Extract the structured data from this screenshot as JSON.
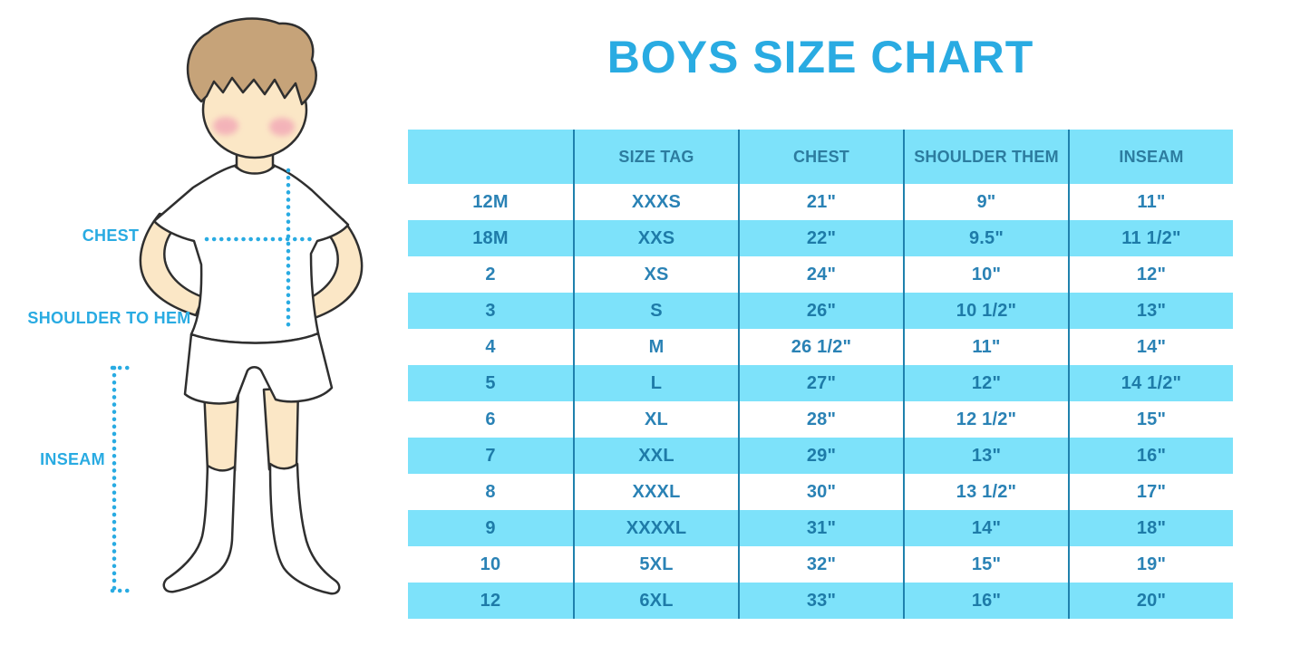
{
  "chart_data": {
    "type": "table",
    "title": "BOYS SIZE CHART",
    "columns": [
      "",
      "SIZE TAG",
      "CHEST",
      "SHOULDER THEM",
      "INSEAM"
    ],
    "rows": [
      [
        "12M",
        "XXXS",
        "21\"",
        "9\"",
        "11\""
      ],
      [
        "18M",
        "XXS",
        "22\"",
        "9.5\"",
        "11 1/2\""
      ],
      [
        "2",
        "XS",
        "24\"",
        "10\"",
        "12\""
      ],
      [
        "3",
        "S",
        "26\"",
        "10 1/2\"",
        "13\""
      ],
      [
        "4",
        "M",
        "26 1/2\"",
        "11\"",
        "14\""
      ],
      [
        "5",
        "L",
        "27\"",
        "12\"",
        "14 1/2\""
      ],
      [
        "6",
        "XL",
        "28\"",
        "12 1/2\"",
        "15\""
      ],
      [
        "7",
        "XXL",
        "29\"",
        "13\"",
        "16\""
      ],
      [
        "8",
        "XXXL",
        "30\"",
        "13 1/2\"",
        "17\""
      ],
      [
        "9",
        "XXXXL",
        "31\"",
        "14\"",
        "18\""
      ],
      [
        "10",
        "5XL",
        "32\"",
        "15\"",
        "19\""
      ],
      [
        "12",
        "6XL",
        "33\"",
        "16\"",
        "20\""
      ]
    ],
    "layout": {
      "header_background": "#7de2fa",
      "alternating_row_background": [
        "#ffffff",
        "#7de2fa"
      ],
      "column_divider_color": "#1f81ad"
    }
  },
  "figure_labels": {
    "chest": "CHEST",
    "shoulder_to_hem": "SHOULDER TO HEM",
    "inseam": "INSEAM"
  },
  "colors": {
    "accent_blue": "#29abe2",
    "row_light_blue": "#7de2fa",
    "divider_blue": "#1f81ad",
    "header_text": "#2c7c9f",
    "cell_text": "#2a82b5",
    "skin": "#fbe7c6",
    "hair": "#c6a379",
    "blush": "#f2a7b6"
  }
}
